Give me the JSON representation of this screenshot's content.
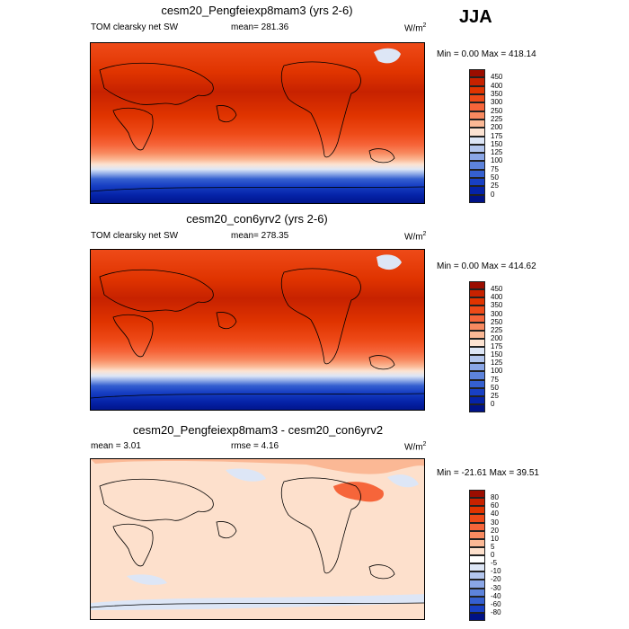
{
  "season": "JJA",
  "panels": [
    {
      "id": "test",
      "title": "cesm20_Pengfeiexp8mam3 (yrs 2-6)",
      "left_label": "TOM clearsky net SW",
      "center_label": "mean= 281.36",
      "units_base": "W/m",
      "units_exp": "2",
      "minmax": "Min =   0.00 Max = 418.14",
      "colorbar_levels": [
        "450",
        "400",
        "350",
        "300",
        "250",
        "225",
        "200",
        "175",
        "150",
        "125",
        "100",
        "75",
        "50",
        "25",
        "0"
      ],
      "colorbar_colors": [
        "#9b0d00",
        "#c72200",
        "#e03400",
        "#ee4a18",
        "#f6653a",
        "#f88a60",
        "#fbb895",
        "#fce3d2",
        "#dde6f6",
        "#b3c6ee",
        "#8aa6e6",
        "#5d83db",
        "#3560d0",
        "#1840c4",
        "#0523a8",
        "#001286"
      ]
    },
    {
      "id": "control",
      "title": "cesm20_con6yrv2 (yrs 2-6)",
      "left_label": "TOM clearsky net SW",
      "center_label": "mean= 278.35",
      "units_base": "W/m",
      "units_exp": "2",
      "minmax": "Min =   0.00 Max = 414.62",
      "colorbar_levels": [
        "450",
        "400",
        "350",
        "300",
        "250",
        "225",
        "200",
        "175",
        "150",
        "125",
        "100",
        "75",
        "50",
        "25",
        "0"
      ],
      "colorbar_colors": [
        "#9b0d00",
        "#c72200",
        "#e03400",
        "#ee4a18",
        "#f6653a",
        "#f88a60",
        "#fbb895",
        "#fce3d2",
        "#dde6f6",
        "#b3c6ee",
        "#8aa6e6",
        "#5d83db",
        "#3560d0",
        "#1840c4",
        "#0523a8",
        "#001286"
      ]
    },
    {
      "id": "difference",
      "title": "cesm20_Pengfeiexp8mam3 - cesm20_con6yrv2",
      "left_label": "mean =   3.01",
      "center_label": "rmse =   4.16",
      "units_base": "W/m",
      "units_exp": "2",
      "minmax": "Min = -21.61 Max =  39.51",
      "colorbar_levels": [
        "80",
        "60",
        "40",
        "30",
        "20",
        "10",
        "5",
        "0",
        "-5",
        "-10",
        "-20",
        "-30",
        "-40",
        "-60",
        "-80"
      ],
      "colorbar_colors": [
        "#9b0d00",
        "#c72200",
        "#e03400",
        "#ee4a18",
        "#f6653a",
        "#f88a60",
        "#fbb895",
        "#fde0cc",
        "#ffffff",
        "#dde6f6",
        "#b3c6ee",
        "#8aa6e6",
        "#5d83db",
        "#3560d0",
        "#1840c4",
        "#001286"
      ]
    }
  ],
  "chart_data": {
    "type": "heatmap",
    "variable": "TOM clearsky net SW",
    "units": "W/m2",
    "season": "JJA",
    "panels": [
      {
        "name": "cesm20_Pengfeiexp8mam3 (yrs 2-6)",
        "mean": 281.36,
        "min": 0.0,
        "max": 418.14,
        "levels": [
          0,
          25,
          50,
          75,
          100,
          125,
          150,
          175,
          200,
          225,
          250,
          300,
          350,
          400,
          450
        ]
      },
      {
        "name": "cesm20_con6yrv2 (yrs 2-6)",
        "mean": 278.35,
        "min": 0.0,
        "max": 414.62,
        "levels": [
          0,
          25,
          50,
          75,
          100,
          125,
          150,
          175,
          200,
          225,
          250,
          300,
          350,
          400,
          450
        ]
      },
      {
        "name": "cesm20_Pengfeiexp8mam3 - cesm20_con6yrv2",
        "mean": 3.01,
        "rmse": 4.16,
        "min": -21.61,
        "max": 39.51,
        "levels": [
          -80,
          -60,
          -40,
          -30,
          -20,
          -10,
          -5,
          0,
          5,
          10,
          20,
          30,
          40,
          60,
          80
        ]
      }
    ]
  }
}
